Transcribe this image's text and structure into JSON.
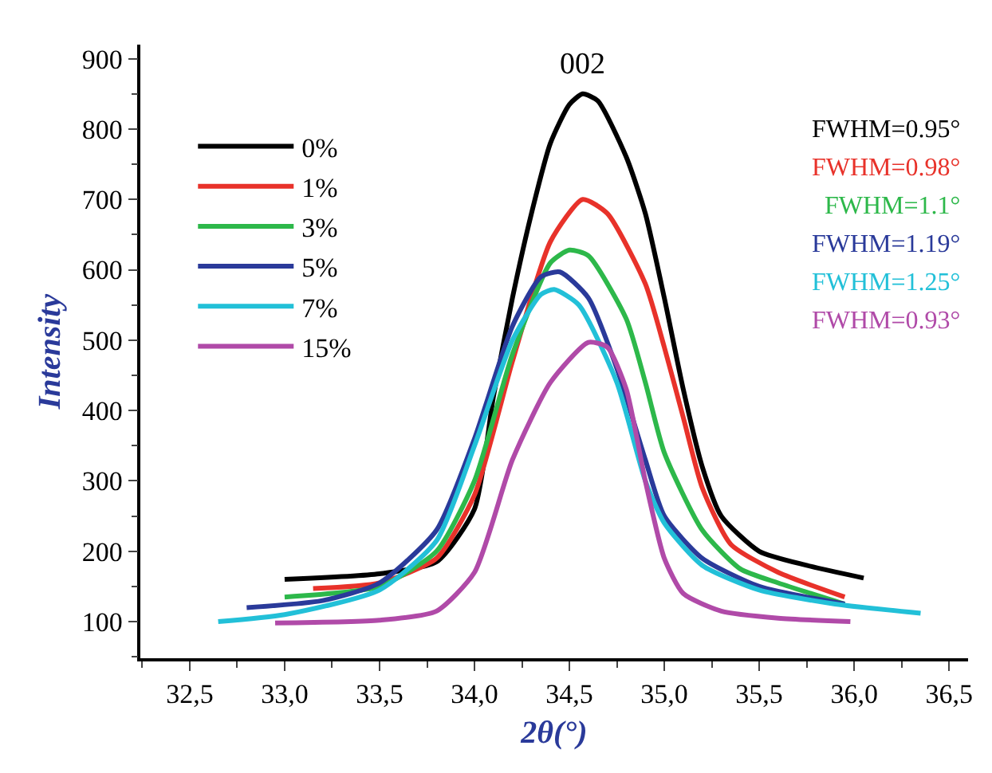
{
  "chart_data": {
    "type": "line",
    "xlabel": "2θ(°)",
    "ylabel": "Intensity",
    "xlim": [
      32.24,
      36.6
    ],
    "ylim": [
      48,
      920
    ],
    "xticks": [
      {
        "value": 32.5,
        "label": "32,5"
      },
      {
        "value": 33.0,
        "label": "33,0"
      },
      {
        "value": 33.5,
        "label": "33,5"
      },
      {
        "value": 34.0,
        "label": "34,0"
      },
      {
        "value": 34.5,
        "label": "34,5"
      },
      {
        "value": 35.0,
        "label": "35,0"
      },
      {
        "value": 35.5,
        "label": "35,5"
      },
      {
        "value": 36.0,
        "label": "36,0"
      },
      {
        "value": 36.5,
        "label": "36,5"
      }
    ],
    "yticks": [
      100,
      200,
      300,
      400,
      500,
      600,
      700,
      800,
      900
    ],
    "legend": "top left",
    "marker": "none",
    "line_style": "solid",
    "annotations": [
      {
        "text": "002",
        "x": 34.57,
        "y": 850
      },
      "FWHM=0.95°",
      "FWHM=0.98°",
      "FWHM=1.1°",
      "FWHM=1.19°",
      "FWHM=1.25°",
      "FWHM=0.93°"
    ],
    "series": [
      {
        "name": "0%",
        "color": "#000000",
        "x": [
          33.0,
          33.5,
          33.8,
          34.0,
          34.1,
          34.2,
          34.3,
          34.4,
          34.5,
          34.57,
          34.65,
          34.8,
          34.9,
          35.0,
          35.1,
          35.2,
          35.3,
          35.5,
          35.75,
          36.05
        ],
        "values": [
          160,
          168,
          185,
          260,
          420,
          560,
          680,
          780,
          835,
          850,
          840,
          760,
          680,
          560,
          430,
          320,
          250,
          200,
          180,
          162
        ]
      },
      {
        "name": "1%",
        "color": "#e8322a",
        "x": [
          33.15,
          33.5,
          33.8,
          34.0,
          34.2,
          34.4,
          34.57,
          34.7,
          34.9,
          35.0,
          35.1,
          35.2,
          35.35,
          35.6,
          35.95
        ],
        "values": [
          147,
          155,
          190,
          280,
          470,
          640,
          700,
          680,
          580,
          490,
          390,
          290,
          210,
          170,
          135
        ]
      },
      {
        "name": "3%",
        "color": "#2db84a",
        "x": [
          33.0,
          33.5,
          33.8,
          34.0,
          34.2,
          34.4,
          34.5,
          34.6,
          34.8,
          34.9,
          35.0,
          35.2,
          35.4,
          35.6,
          35.95
        ],
        "values": [
          135,
          150,
          200,
          300,
          480,
          610,
          628,
          620,
          530,
          440,
          340,
          230,
          175,
          155,
          125
        ]
      },
      {
        "name": "5%",
        "color": "#2a3a9a",
        "x": [
          32.8,
          33.2,
          33.5,
          33.8,
          34.0,
          34.2,
          34.35,
          34.45,
          34.6,
          34.75,
          34.9,
          35.0,
          35.2,
          35.5,
          35.95
        ],
        "values": [
          120,
          130,
          155,
          230,
          360,
          520,
          590,
          597,
          560,
          460,
          330,
          250,
          190,
          150,
          125
        ]
      },
      {
        "name": "7%",
        "color": "#22c0d8",
        "x": [
          32.65,
          33.0,
          33.5,
          33.8,
          34.0,
          34.2,
          34.35,
          34.42,
          34.55,
          34.75,
          34.9,
          35.0,
          35.2,
          35.5,
          35.9,
          36.35
        ],
        "values": [
          100,
          110,
          145,
          215,
          350,
          500,
          565,
          572,
          550,
          440,
          300,
          240,
          180,
          145,
          125,
          112
        ]
      },
      {
        "name": "15%",
        "color": "#b04aa8",
        "x": [
          32.95,
          33.5,
          33.8,
          34.0,
          34.2,
          34.4,
          34.6,
          34.7,
          34.8,
          34.9,
          35.0,
          35.1,
          35.3,
          35.6,
          35.98
        ],
        "values": [
          98,
          102,
          115,
          170,
          330,
          440,
          497,
          490,
          430,
          300,
          190,
          140,
          115,
          105,
          100
        ]
      }
    ]
  }
}
